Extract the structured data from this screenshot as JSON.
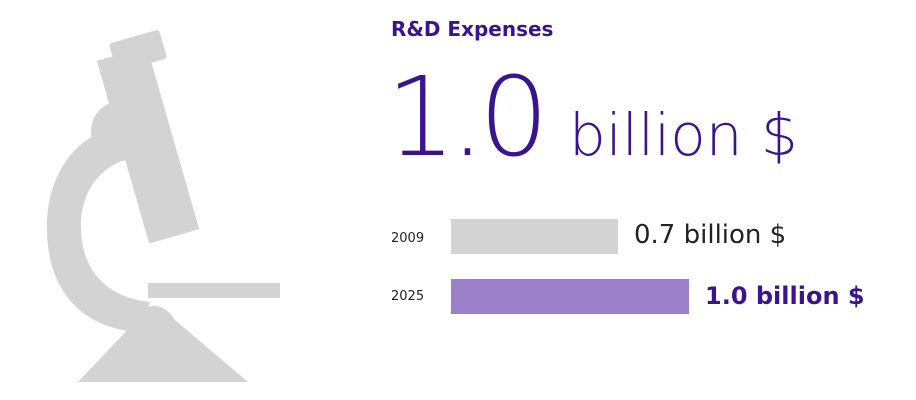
{
  "title": "R&D Expenses",
  "headline": {
    "value": "1.0",
    "unit": "billion $"
  },
  "colors": {
    "accent": "#3a148c",
    "bar_prior": "#d3d3d3",
    "bar_current": "#9b80c9",
    "icon": "#d3d3d3"
  },
  "icon": "microscope-icon",
  "chart_data": {
    "type": "bar",
    "orientation": "horizontal",
    "categories": [
      "2009",
      "2025"
    ],
    "values": [
      0.7,
      1.0
    ],
    "data_labels": [
      "0.7 billion $",
      "1.0 billion $"
    ],
    "title": "R&D Expenses"
  }
}
